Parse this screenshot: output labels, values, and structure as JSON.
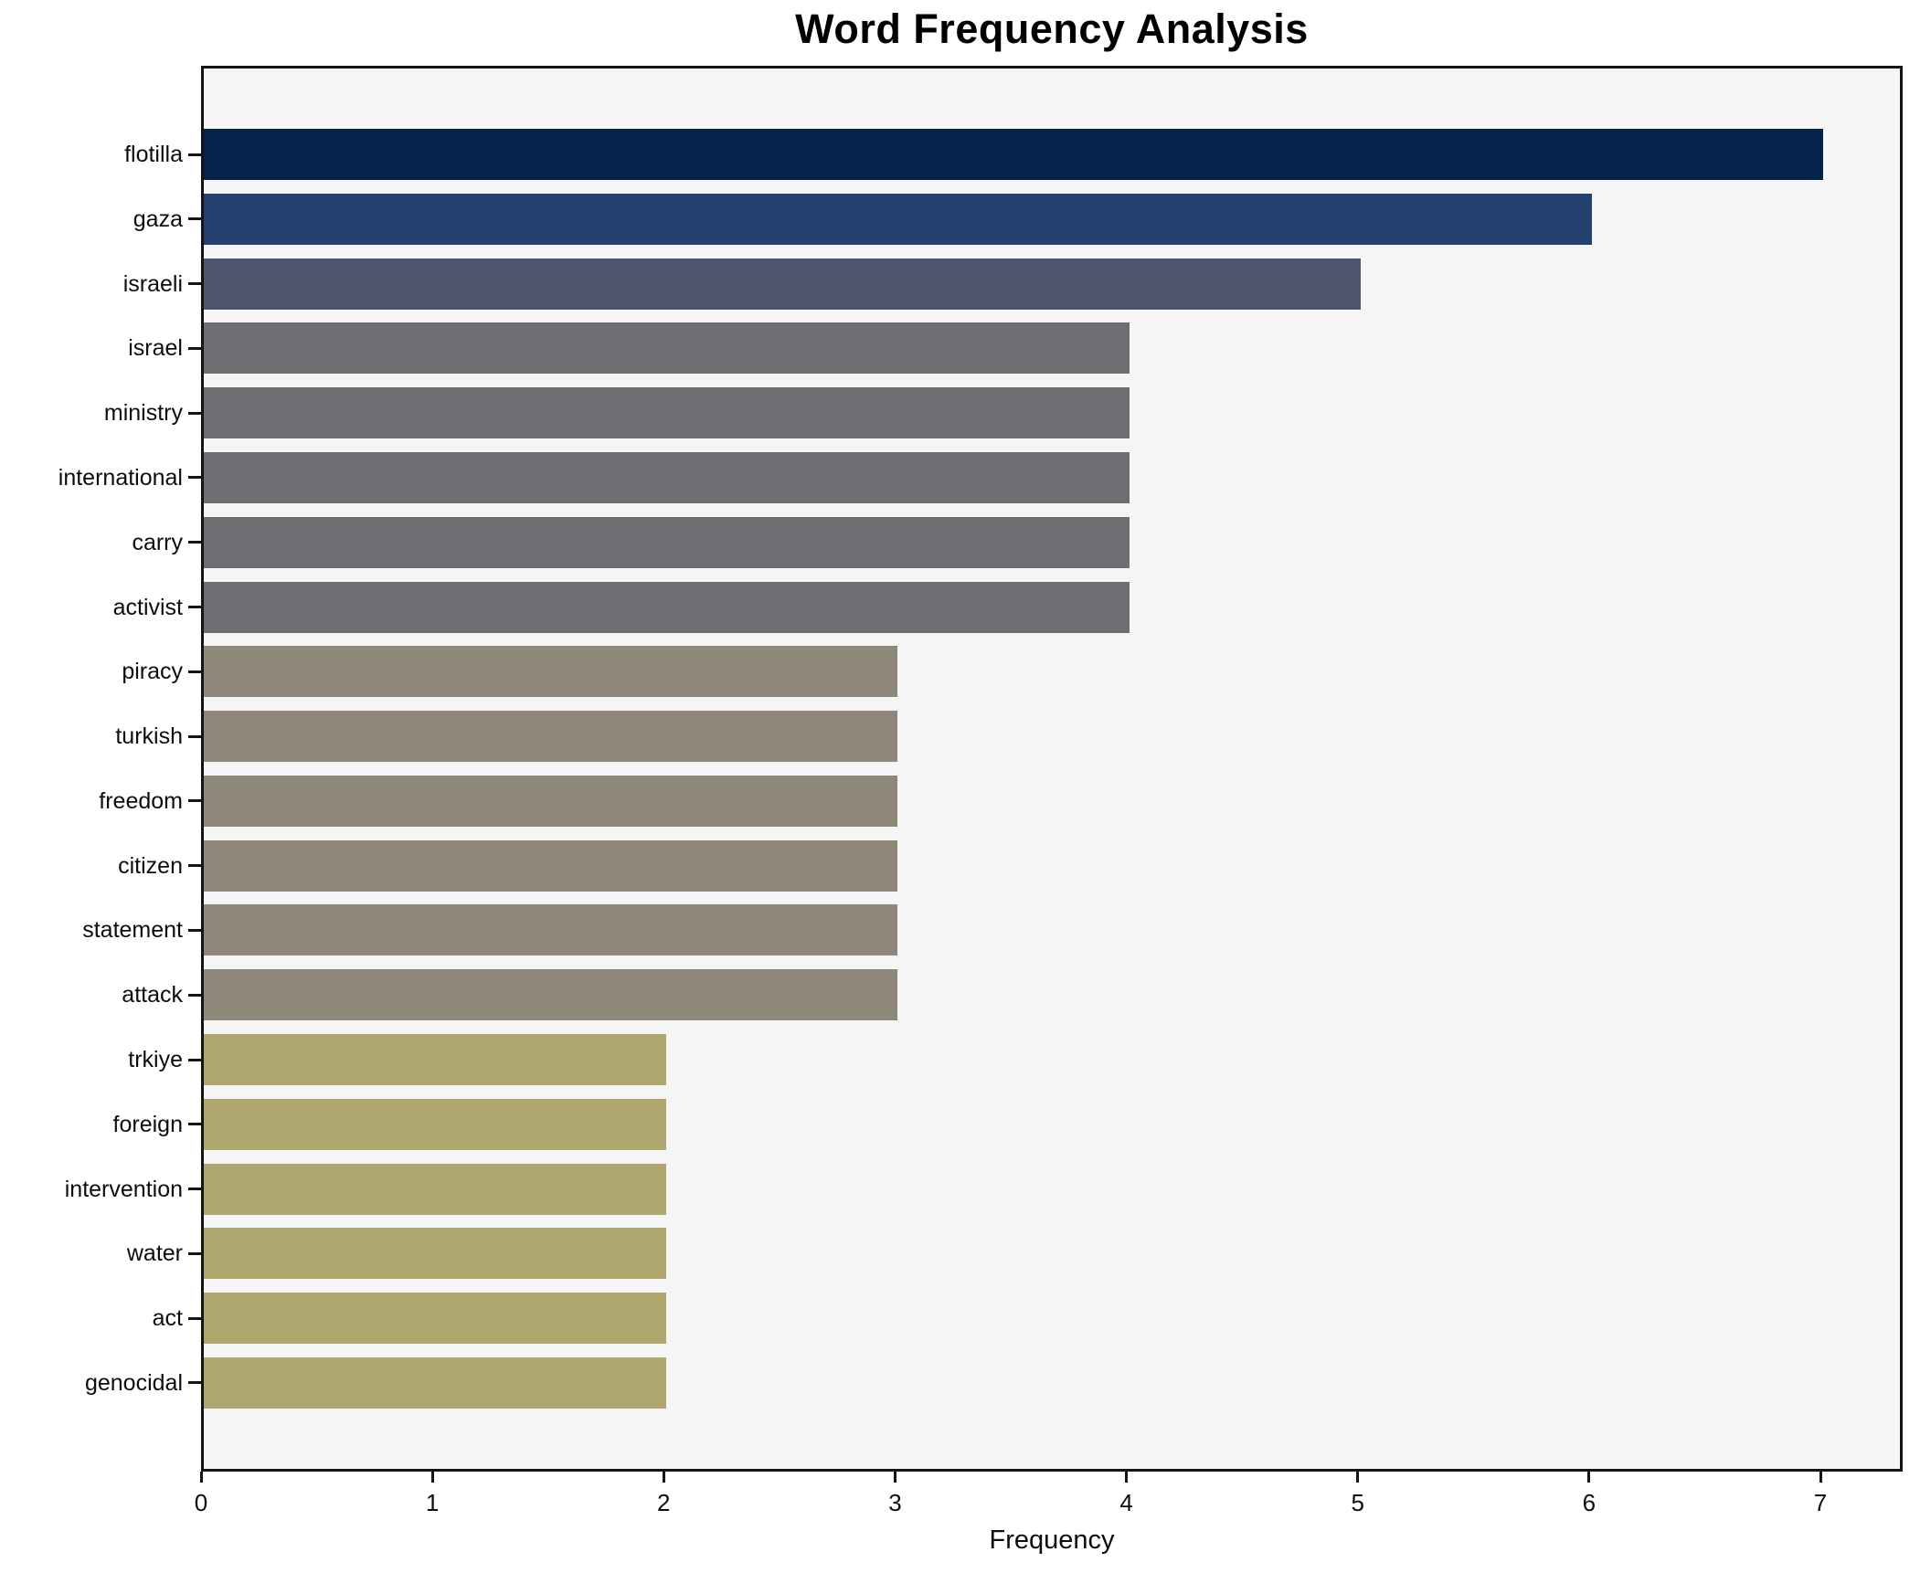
{
  "chart_data": {
    "type": "bar",
    "orientation": "horizontal",
    "title": "Word Frequency Analysis",
    "xlabel": "Frequency",
    "ylabel": "",
    "categories": [
      "flotilla",
      "gaza",
      "israeli",
      "israel",
      "ministry",
      "international",
      "carry",
      "activist",
      "piracy",
      "turkish",
      "freedom",
      "citizen",
      "statement",
      "attack",
      "trkiye",
      "foreign",
      "intervention",
      "water",
      "act",
      "genocidal"
    ],
    "values": [
      7,
      6,
      5,
      4,
      4,
      4,
      4,
      4,
      3,
      3,
      3,
      3,
      3,
      3,
      2,
      2,
      2,
      2,
      2,
      2
    ],
    "colors": [
      "#03224e",
      "#24406e",
      "#4d556e",
      "#6c6e71",
      "#6c6e71",
      "#6c6e71",
      "#6c6e71",
      "#6c6e71",
      "#8e8879",
      "#8e8879",
      "#8e8879",
      "#8e8879",
      "#8e8879",
      "#8e8879",
      "#b0a76e",
      "#b0a76e",
      "#b0a76e",
      "#b0a76e",
      "#b0a76e",
      "#b0a76e"
    ],
    "value_color_scale": {
      "7": "#03224e",
      "6": "#24406e",
      "5": "#4d556e",
      "4": "#6c6e71",
      "3": "#8e8879",
      "2": "#b0a76e"
    },
    "xticks": [
      0,
      1,
      2,
      3,
      4,
      5,
      6,
      7
    ],
    "xlim": [
      0,
      7.36
    ],
    "grid": false,
    "legend": false,
    "plot_background": "#f6f5f6",
    "figure_background": "#ffffff",
    "spine_color": "#141414"
  }
}
